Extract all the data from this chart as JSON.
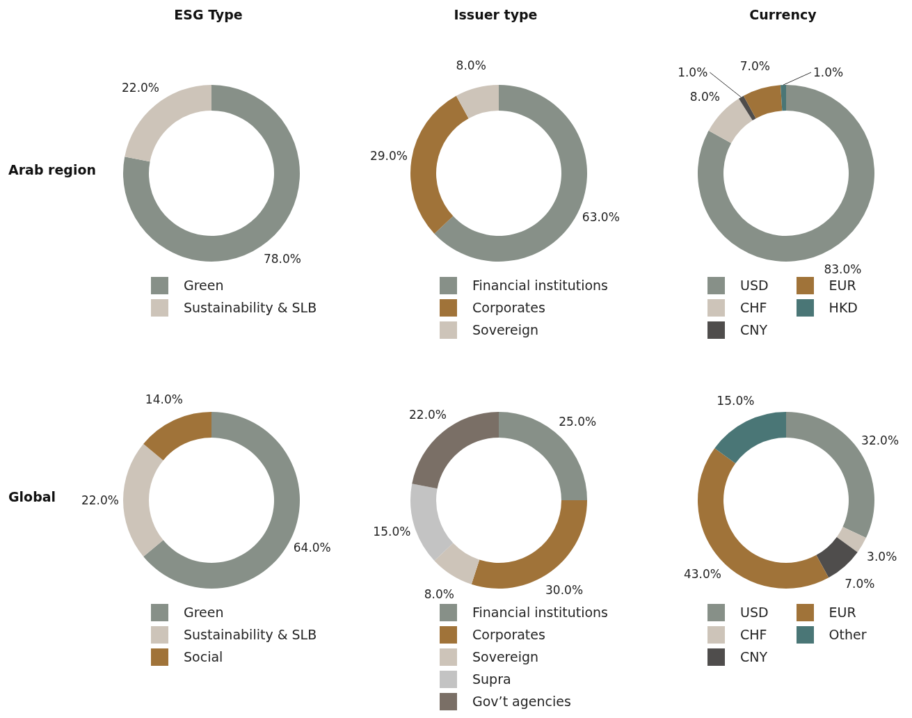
{
  "chart_data": [
    {
      "type": "donut",
      "title": "ESG Type",
      "ylabel": "Arab region",
      "categories": [
        "Green",
        "Sustainability  & SLB"
      ],
      "values": [
        78,
        22
      ],
      "value_labels": [
        "78.0%",
        "22.0%"
      ],
      "colors": [
        "#879088",
        "#cdc4b9"
      ],
      "legend": "bottom"
    },
    {
      "type": "donut",
      "title": "Issuer type",
      "categories": [
        "Financial institutions",
        "Corporates",
        "Sovereign"
      ],
      "values": [
        63,
        29,
        8
      ],
      "value_labels": [
        "63.0%",
        "29.0%",
        "8.0%"
      ],
      "colors": [
        "#879088",
        "#a07339",
        "#cdc4b9"
      ],
      "legend": "bottom"
    },
    {
      "type": "donut",
      "title": "Currency",
      "categories": [
        "USD",
        "CHF",
        "CNY",
        "EUR",
        "HKD"
      ],
      "values": [
        83,
        8,
        1,
        7,
        1
      ],
      "value_labels": [
        "83.0%",
        "8.0%",
        "1.0%",
        "7.0%",
        "1.0%"
      ],
      "colors": [
        "#879088",
        "#cdc4b9",
        "#4f4d4c",
        "#a07339",
        "#4a7676"
      ],
      "legend": "bottom"
    },
    {
      "type": "donut",
      "ylabel": "Global",
      "categories": [
        "Green",
        "Sustainability  & SLB",
        "Social"
      ],
      "values": [
        64,
        22,
        14
      ],
      "value_labels": [
        "64.0%",
        "22.0%",
        "14.0%"
      ],
      "colors": [
        "#879088",
        "#cdc4b9",
        "#a07339"
      ],
      "legend": "bottom"
    },
    {
      "type": "donut",
      "categories": [
        "Financial institutions",
        "Corporates",
        "Sovereign",
        "Supra",
        "Gov’t agencies"
      ],
      "values": [
        25,
        30,
        8,
        15,
        22
      ],
      "value_labels": [
        "25.0%",
        "30.0%",
        "8.0%",
        "15.0%",
        "22.0%"
      ],
      "colors": [
        "#879088",
        "#a07339",
        "#cdc4b9",
        "#c3c3c3",
        "#7a6f66"
      ],
      "legend": "bottom"
    },
    {
      "type": "donut",
      "categories": [
        "USD",
        "CHF",
        "CNY",
        "EUR",
        "Other"
      ],
      "values": [
        32,
        3,
        7,
        43,
        15
      ],
      "value_labels": [
        "32.0%",
        "3.0%",
        "7.0%",
        "43.0%",
        "15.0%"
      ],
      "colors": [
        "#879088",
        "#cdc4b9",
        "#4f4d4c",
        "#a07339",
        "#4a7676"
      ],
      "legend": "bottom"
    }
  ]
}
